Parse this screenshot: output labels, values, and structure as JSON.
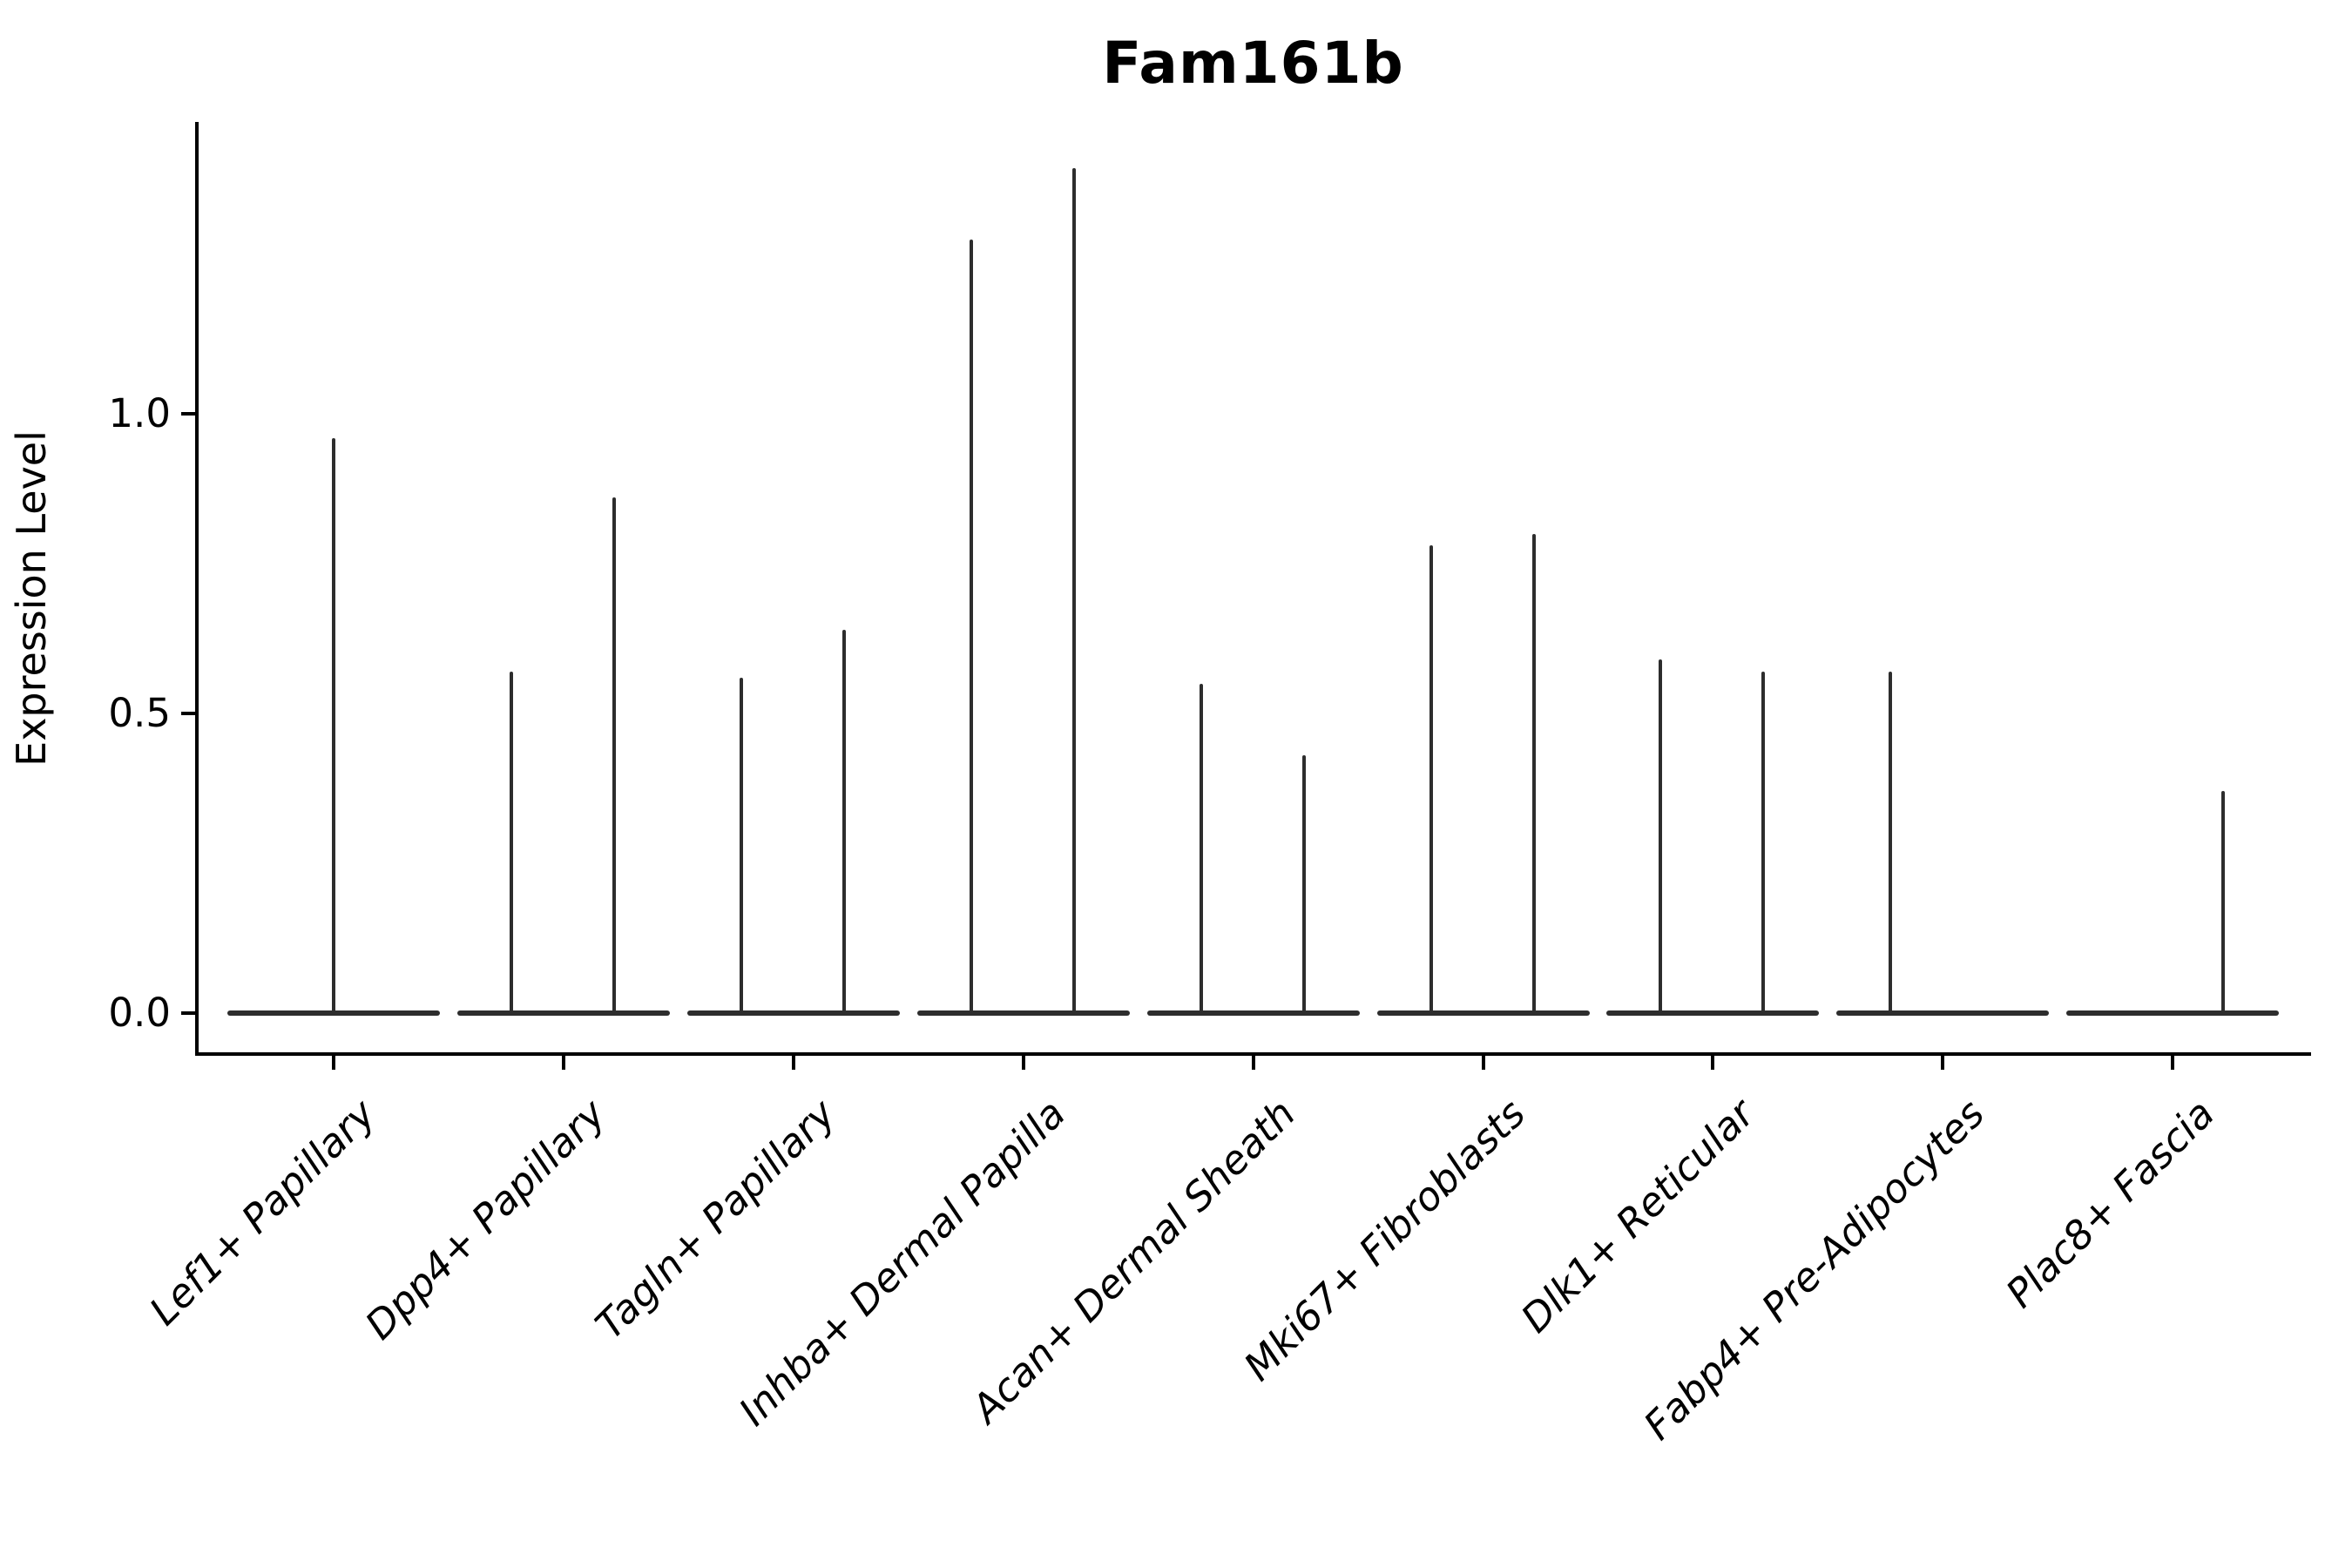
{
  "chart_data": {
    "type": "violin",
    "title": "Fam161b",
    "ylabel": "Expression Level",
    "xlabel": "",
    "grid": false,
    "legend": "none",
    "ylim": [
      -0.07,
      1.49
    ],
    "yticks": [
      {
        "label": "0.0",
        "value": 0.0
      },
      {
        "label": "0.5",
        "value": 0.5
      },
      {
        "label": "1.0",
        "value": 1.0
      }
    ],
    "colors": {
      "violin_line": "#2d2d2d",
      "axis": "#000000",
      "text": "#000000",
      "background": "#ffffff"
    },
    "density_note": "Each violin is almost entirely concentrated at expression 0 (flat base bar) with a thin spike reaching the maximum expression value.",
    "categories": [
      {
        "label": "Lef1+ Papillary",
        "violins": [
          {
            "side": "center",
            "max_expression": 0.96
          }
        ]
      },
      {
        "label": "Dpp4+ Papillary",
        "violins": [
          {
            "side": "left",
            "max_expression": 0.57
          },
          {
            "side": "right",
            "max_expression": 0.86
          }
        ]
      },
      {
        "label": "Tagln+ Papillary",
        "violins": [
          {
            "side": "left",
            "max_expression": 0.56
          },
          {
            "side": "right",
            "max_expression": 0.64
          }
        ]
      },
      {
        "label": "Inhba+ Dermal Papilla",
        "violins": [
          {
            "side": "left",
            "max_expression": 1.29
          },
          {
            "side": "right",
            "max_expression": 1.41
          }
        ]
      },
      {
        "label": "Acan+ Dermal Sheath",
        "violins": [
          {
            "side": "left",
            "max_expression": 0.55
          },
          {
            "side": "right",
            "max_expression": 0.43
          }
        ]
      },
      {
        "label": "Mki67+ Fibroblasts",
        "violins": [
          {
            "side": "left",
            "max_expression": 0.78
          },
          {
            "side": "right",
            "max_expression": 0.8
          }
        ]
      },
      {
        "label": "Dlk1+ Reticular",
        "violins": [
          {
            "side": "left",
            "max_expression": 0.59
          },
          {
            "side": "right",
            "max_expression": 0.57
          }
        ]
      },
      {
        "label": "Fabp4+ Pre-Adipocytes",
        "violins": [
          {
            "side": "left",
            "max_expression": 0.57
          }
        ]
      },
      {
        "label": "Plac8+ Fascia",
        "violins": [
          {
            "side": "right",
            "max_expression": 0.37
          }
        ]
      }
    ]
  }
}
